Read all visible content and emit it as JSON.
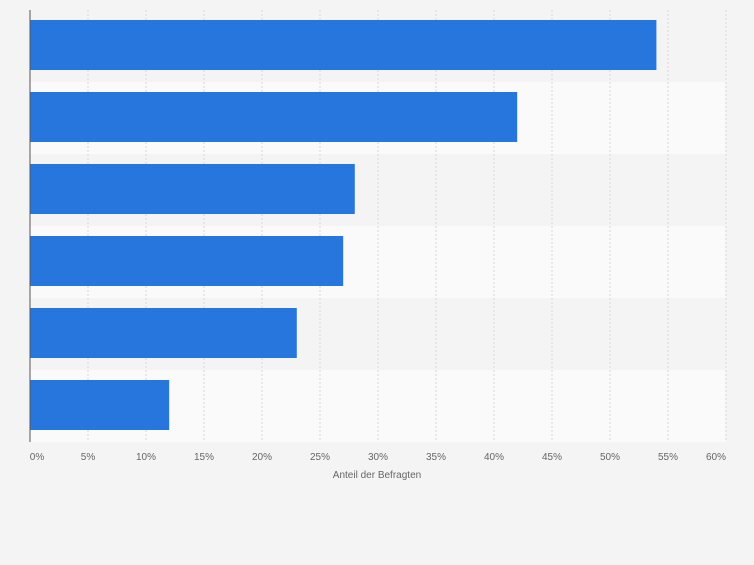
{
  "chart_data": {
    "type": "bar",
    "orientation": "horizontal",
    "categories": [
      "",
      "",
      "",
      "",
      "",
      ""
    ],
    "values": [
      54,
      42,
      28,
      27,
      23,
      12
    ],
    "unit": "%",
    "title": "",
    "xlabel": "Anteil der Befragten",
    "ylabel": "",
    "xlim": [
      0,
      60
    ],
    "xticks": [
      0,
      5,
      10,
      15,
      20,
      25,
      30,
      35,
      40,
      45,
      50,
      55,
      60
    ],
    "xtick_labels": [
      "0%",
      "5%",
      "10%",
      "15%",
      "20%",
      "25%",
      "30%",
      "35%",
      "40%",
      "45%",
      "50%",
      "55%",
      "60%"
    ],
    "grid": "vertical dashed",
    "legend": "none",
    "bar_color": "#2776dd",
    "band_colors": [
      "#f4f4f4",
      "#fafafa"
    ],
    "background": "#f4f4f4",
    "axis_color": "#555555",
    "gridline_color": "#d7d7d7",
    "tick_label_color": "#666666"
  }
}
